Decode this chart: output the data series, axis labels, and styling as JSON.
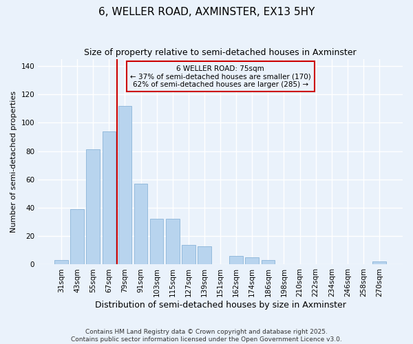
{
  "title": "6, WELLER ROAD, AXMINSTER, EX13 5HY",
  "subtitle": "Size of property relative to semi-detached houses in Axminster",
  "xlabel": "Distribution of semi-detached houses by size in Axminster",
  "ylabel": "Number of semi-detached properties",
  "categories": [
    "31sqm",
    "43sqm",
    "55sqm",
    "67sqm",
    "79sqm",
    "91sqm",
    "103sqm",
    "115sqm",
    "127sqm",
    "139sqm",
    "151sqm",
    "162sqm",
    "174sqm",
    "186sqm",
    "198sqm",
    "210sqm",
    "222sqm",
    "234sqm",
    "246sqm",
    "258sqm",
    "270sqm"
  ],
  "values": [
    3,
    39,
    81,
    94,
    112,
    57,
    32,
    32,
    14,
    13,
    0,
    6,
    5,
    3,
    0,
    0,
    0,
    0,
    0,
    0,
    2
  ],
  "bar_color": "#b8d4ee",
  "bar_edgecolor": "#8ab4d8",
  "vline_color": "#cc0000",
  "vline_pos": 3.5,
  "annotation_title": "6 WELLER ROAD: 75sqm",
  "annotation_line1": "← 37% of semi-detached houses are smaller (170)",
  "annotation_line2": "62% of semi-detached houses are larger (285) →",
  "annotation_box_color": "#cc0000",
  "ylim": [
    0,
    145
  ],
  "yticks": [
    0,
    20,
    40,
    60,
    80,
    100,
    120,
    140
  ],
  "footer1": "Contains HM Land Registry data © Crown copyright and database right 2025.",
  "footer2": "Contains public sector information licensed under the Open Government Licence v3.0.",
  "background_color": "#eaf2fb",
  "grid_color": "#ffffff",
  "title_fontsize": 11,
  "subtitle_fontsize": 9,
  "xlabel_fontsize": 9,
  "ylabel_fontsize": 8,
  "tick_fontsize": 7.5,
  "annotation_fontsize": 7.5,
  "footer_fontsize": 6.5
}
